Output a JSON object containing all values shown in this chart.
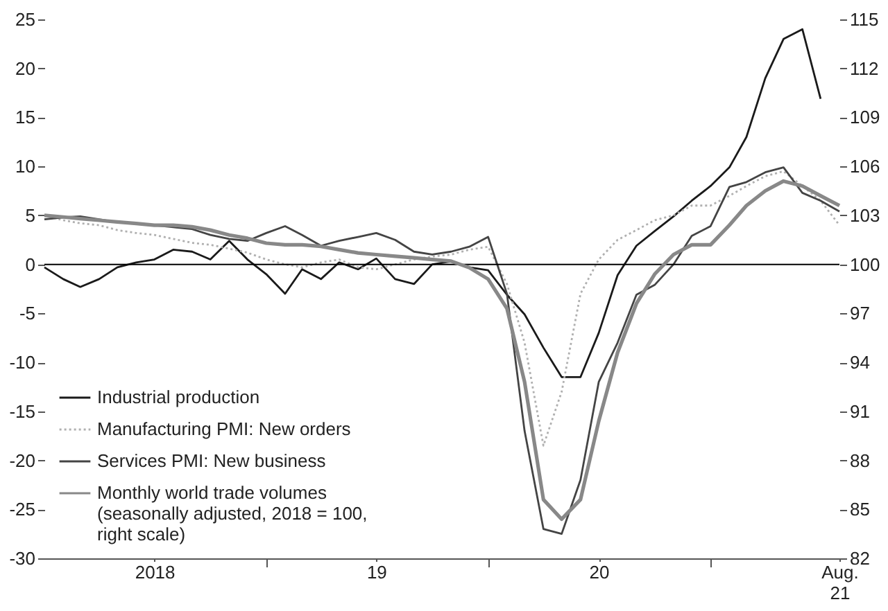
{
  "chart_data": {
    "type": "line",
    "x": [
      "2018-01",
      "2018-02",
      "2018-03",
      "2018-04",
      "2018-05",
      "2018-06",
      "2018-07",
      "2018-08",
      "2018-09",
      "2018-10",
      "2018-11",
      "2018-12",
      "2019-01",
      "2019-02",
      "2019-03",
      "2019-04",
      "2019-05",
      "2019-06",
      "2019-07",
      "2019-08",
      "2019-09",
      "2019-10",
      "2019-11",
      "2019-12",
      "2020-01",
      "2020-02",
      "2020-03",
      "2020-04",
      "2020-05",
      "2020-06",
      "2020-07",
      "2020-08",
      "2020-09",
      "2020-10",
      "2020-11",
      "2020-12",
      "2021-01",
      "2021-02",
      "2021-03",
      "2021-04",
      "2021-05",
      "2021-06",
      "2021-07",
      "2021-08"
    ],
    "series": [
      {
        "name": "Industrial production",
        "color": "#1a1a1a",
        "line_style": "solid",
        "values": [
          -0.3,
          -1.5,
          -2.3,
          -1.5,
          -0.3,
          0.2,
          0.5,
          1.5,
          1.3,
          0.5,
          2.4,
          0.5,
          -1,
          -3,
          -0.5,
          -1.5,
          0.2,
          -0.5,
          0.6,
          -1.5,
          -2,
          0,
          0.3,
          -0.3,
          -0.6,
          -3.1,
          -5.1,
          -8.5,
          -11.5,
          -11.5,
          -7,
          -1.1,
          1.9,
          3.4,
          4.9,
          6.5,
          8,
          9.9,
          13,
          19,
          23,
          24,
          16.9,
          null
        ]
      },
      {
        "name": "Manufacturing PMI: New orders",
        "color": "#b0b0b0",
        "line_style": "dotted",
        "values": [
          5,
          4.5,
          4.2,
          4,
          3.5,
          3.2,
          3,
          2.6,
          2.2,
          2,
          1.6,
          1.2,
          0.5,
          0,
          -0.3,
          0.2,
          0.5,
          -0.3,
          -0.5,
          0,
          0.5,
          0.8,
          1,
          1.5,
          1.8,
          -2,
          -8,
          -18.5,
          -13,
          -3,
          0.5,
          2.5,
          3.5,
          4.5,
          5,
          6,
          6,
          7,
          8,
          9,
          9.5,
          8,
          6.5,
          4
        ]
      },
      {
        "name": "Services PMI: New business",
        "color": "#444444",
        "line_style": "solid",
        "values": [
          4.6,
          4.8,
          4.9,
          4.6,
          4.3,
          4.2,
          4,
          3.8,
          3.6,
          3,
          2.6,
          2.4,
          3.2,
          3.9,
          3,
          1.9,
          2.4,
          2.8,
          3.2,
          2.5,
          1.3,
          1,
          1.3,
          1.8,
          2.8,
          -3,
          -17,
          -27,
          -27.5,
          -22,
          -12,
          -8,
          -3.1,
          -2.1,
          0,
          2.9,
          3.9,
          7.9,
          8.4,
          9.4,
          9.9,
          7.3,
          6.5,
          5.4
        ]
      },
      {
        "name": "Monthly world trade volumes\n(seasonally adjusted, 2018 = 100,\nright scale)",
        "color": "#888888",
        "line_style": "solid",
        "axis": "y2",
        "values": [
          103,
          102.9,
          102.8,
          102.7,
          102.6,
          102.5,
          102.4,
          102.4,
          102.3,
          102.1,
          101.8,
          101.6,
          101.3,
          101.2,
          101.2,
          101.1,
          100.9,
          100.7,
          100.6,
          100.5,
          100.4,
          100.3,
          100.2,
          99.8,
          99.1,
          97.3,
          92.8,
          85.6,
          84.4,
          85.6,
          90.4,
          94.6,
          97.6,
          99.4,
          100.6,
          101.2,
          101.2,
          102.4,
          103.6,
          104.5,
          105.1,
          104.8,
          104.2,
          103.6
        ]
      }
    ],
    "xlim": [
      "2018-01",
      "2021-08"
    ],
    "xticks": [
      {
        "value": "2018-07",
        "label": "2018"
      },
      {
        "value": "2019-01",
        "label": null
      },
      {
        "value": "2019-07",
        "label": "19"
      },
      {
        "value": "2020-01",
        "label": null
      },
      {
        "value": "2020-07",
        "label": "20"
      },
      {
        "value": "2021-01",
        "label": null
      },
      {
        "value": "2021-08",
        "label": "Aug.\n21"
      }
    ],
    "ylim": [
      -30,
      25
    ],
    "yticks": [
      -30,
      -25,
      -20,
      -15,
      -10,
      -5,
      0,
      5,
      10,
      15,
      20,
      25
    ],
    "y2lim": [
      82,
      115
    ],
    "y2ticks": [
      82,
      85,
      88,
      91,
      94,
      97,
      100,
      103,
      106,
      109,
      112,
      115
    ],
    "ref_lines": [
      {
        "axis": "y",
        "value": 0,
        "color": "#000000"
      }
    ],
    "legend": "bottom left",
    "grid": false
  }
}
